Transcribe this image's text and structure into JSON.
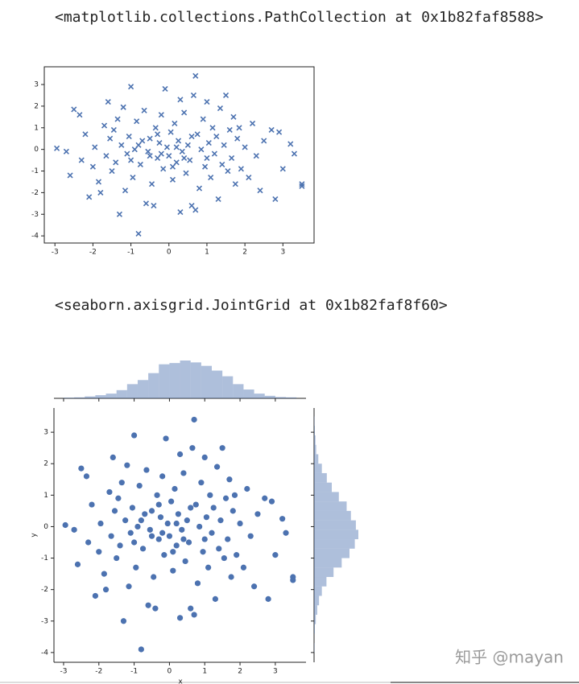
{
  "chart_data": [
    {
      "type": "scatter",
      "repr": "<matplotlib.collections.PathCollection at 0x1b82faf8588>",
      "marker": "x",
      "color": "#4c72b0",
      "x": [
        -2.95,
        -2.7,
        -2.6,
        -2.5,
        -2.35,
        -2.3,
        -2.2,
        -2.1,
        -2.0,
        -1.95,
        -1.85,
        -1.8,
        -1.7,
        -1.65,
        -1.6,
        -1.55,
        -1.5,
        -1.45,
        -1.4,
        -1.35,
        -1.3,
        -1.25,
        -1.2,
        -1.15,
        -1.1,
        -1.05,
        -1.0,
        -0.95,
        -0.9,
        -0.85,
        -0.8,
        -0.75,
        -0.7,
        -0.65,
        -0.6,
        -0.55,
        -0.5,
        -0.45,
        -0.4,
        -0.35,
        -0.3,
        -0.25,
        -0.2,
        -0.15,
        -0.1,
        -0.05,
        0.0,
        0.05,
        0.1,
        0.15,
        0.2,
        0.25,
        0.3,
        0.3,
        0.35,
        0.4,
        0.45,
        0.5,
        0.55,
        0.6,
        0.65,
        0.7,
        0.7,
        0.75,
        0.8,
        0.85,
        0.9,
        0.95,
        1.0,
        1.05,
        1.1,
        1.15,
        1.2,
        1.25,
        1.3,
        1.35,
        1.4,
        1.45,
        1.5,
        1.55,
        1.6,
        1.65,
        1.7,
        1.75,
        1.8,
        1.85,
        1.9,
        2.0,
        2.1,
        2.2,
        2.3,
        2.4,
        2.5,
        2.7,
        2.8,
        2.9,
        3.0,
        3.2,
        3.3,
        3.5,
        3.5,
        -0.5,
        0.2,
        -0.2,
        0.4,
        -0.8,
        0.6,
        -0.3,
        0.1,
        -1.0,
        1.0
      ],
      "y": [
        0.05,
        -0.1,
        -1.2,
        1.85,
        1.6,
        -0.5,
        0.7,
        -2.2,
        -0.8,
        0.1,
        -1.5,
        -2.0,
        1.1,
        -0.3,
        2.2,
        0.5,
        -1.0,
        0.9,
        -0.6,
        1.4,
        -3.0,
        0.2,
        1.95,
        -1.9,
        -0.2,
        0.6,
        2.9,
        -1.3,
        0.0,
        1.3,
        -3.9,
        -0.7,
        0.4,
        1.8,
        -2.5,
        -0.1,
        0.5,
        -1.6,
        -2.6,
        1.0,
        -0.4,
        0.3,
        1.6,
        -0.9,
        2.8,
        0.1,
        -0.3,
        0.8,
        -1.4,
        1.2,
        -0.6,
        0.4,
        -2.9,
        2.3,
        -0.1,
        1.7,
        -1.1,
        0.2,
        -0.5,
        -2.6,
        2.5,
        3.4,
        -2.8,
        0.7,
        -1.8,
        0.0,
        1.4,
        -0.8,
        2.2,
        0.3,
        -1.3,
        1.0,
        -0.2,
        0.6,
        -2.3,
        1.9,
        -0.7,
        0.2,
        2.5,
        -1.0,
        0.9,
        -0.4,
        1.5,
        -1.6,
        0.5,
        1.0,
        -0.9,
        0.1,
        -1.3,
        1.2,
        -0.3,
        -1.9,
        0.4,
        0.9,
        -2.3,
        0.8,
        -0.9,
        0.25,
        -0.2,
        -1.6,
        -1.7,
        -0.3,
        0.1,
        -0.2,
        -0.4,
        0.2,
        0.6,
        0.7,
        -0.8,
        -0.5,
        -0.4
      ],
      "xlim": [
        -3.28,
        3.82
      ],
      "ylim": [
        -4.33,
        3.82
      ],
      "xticks": [
        -3,
        -2,
        -1,
        0,
        1,
        2,
        3
      ],
      "yticks": [
        -4,
        -3,
        -2,
        -1,
        0,
        1,
        2,
        3
      ]
    },
    {
      "type": "joint",
      "repr": "<seaborn.axisgrid.JointGrid at 0x1b82faf8f60>",
      "marker": "o",
      "color": "#4c72b0",
      "xlabel": "x",
      "ylabel": "y",
      "x": [
        -2.95,
        -2.7,
        -2.6,
        -2.5,
        -2.35,
        -2.3,
        -2.2,
        -2.1,
        -2.0,
        -1.95,
        -1.85,
        -1.8,
        -1.7,
        -1.65,
        -1.6,
        -1.55,
        -1.5,
        -1.45,
        -1.4,
        -1.35,
        -1.3,
        -1.25,
        -1.2,
        -1.15,
        -1.1,
        -1.05,
        -1.0,
        -0.95,
        -0.9,
        -0.85,
        -0.8,
        -0.75,
        -0.7,
        -0.65,
        -0.6,
        -0.55,
        -0.5,
        -0.45,
        -0.4,
        -0.35,
        -0.3,
        -0.25,
        -0.2,
        -0.15,
        -0.1,
        -0.05,
        0.0,
        0.05,
        0.1,
        0.15,
        0.2,
        0.25,
        0.3,
        0.3,
        0.35,
        0.4,
        0.45,
        0.5,
        0.55,
        0.6,
        0.65,
        0.7,
        0.7,
        0.75,
        0.8,
        0.85,
        0.9,
        0.95,
        1.0,
        1.05,
        1.1,
        1.15,
        1.2,
        1.25,
        1.3,
        1.35,
        1.4,
        1.45,
        1.5,
        1.55,
        1.6,
        1.65,
        1.7,
        1.75,
        1.8,
        1.85,
        1.9,
        2.0,
        2.1,
        2.2,
        2.3,
        2.4,
        2.5,
        2.7,
        2.8,
        2.9,
        3.0,
        3.2,
        3.3,
        3.5,
        3.5,
        -0.5,
        0.2,
        -0.2,
        0.4,
        -0.8,
        0.6,
        -0.3,
        0.1,
        -1.0,
        1.0
      ],
      "y": [
        0.05,
        -0.1,
        -1.2,
        1.85,
        1.6,
        -0.5,
        0.7,
        -2.2,
        -0.8,
        0.1,
        -1.5,
        -2.0,
        1.1,
        -0.3,
        2.2,
        0.5,
        -1.0,
        0.9,
        -0.6,
        1.4,
        -3.0,
        0.2,
        1.95,
        -1.9,
        -0.2,
        0.6,
        2.9,
        -1.3,
        0.0,
        1.3,
        -3.9,
        -0.7,
        0.4,
        1.8,
        -2.5,
        -0.1,
        0.5,
        -1.6,
        -2.6,
        1.0,
        -0.4,
        0.3,
        1.6,
        -0.9,
        2.8,
        0.1,
        -0.3,
        0.8,
        -1.4,
        1.2,
        -0.6,
        0.4,
        -2.9,
        2.3,
        -0.1,
        1.7,
        -1.1,
        0.2,
        -0.5,
        -2.6,
        2.5,
        3.4,
        -2.8,
        0.7,
        -1.8,
        0.0,
        1.4,
        -0.8,
        2.2,
        0.3,
        -1.3,
        1.0,
        -0.2,
        0.6,
        -2.3,
        1.9,
        -0.7,
        0.2,
        2.5,
        -1.0,
        0.9,
        -0.4,
        1.5,
        -1.6,
        0.5,
        1.0,
        -0.9,
        0.1,
        -1.3,
        1.2,
        -0.3,
        -1.9,
        0.4,
        0.9,
        -2.3,
        0.8,
        -0.9,
        0.25,
        -0.2,
        -1.6,
        -1.7,
        -0.3,
        0.1,
        -0.2,
        -0.4,
        0.2,
        0.6,
        0.7,
        -0.8,
        -0.5,
        -0.4
      ],
      "xlim": [
        -3.25,
        3.87
      ],
      "ylim": [
        -4.31,
        3.77
      ],
      "xticks": [
        -3,
        -2,
        -1,
        0,
        1,
        2,
        3
      ],
      "yticks": [
        -4,
        -3,
        -2,
        -1,
        0,
        1,
        2,
        3
      ],
      "x_hist": {
        "bins": [
          -3.0,
          -2.7,
          -2.4,
          -2.1,
          -1.8,
          -1.5,
          -1.2,
          -0.9,
          -0.6,
          -0.3,
          0.0,
          0.3,
          0.6,
          0.9,
          1.2,
          1.5,
          1.8,
          2.1,
          2.4,
          2.7,
          3.0,
          3.3,
          3.6
        ],
        "counts": [
          2,
          3,
          6,
          10,
          15,
          26,
          45,
          58,
          80,
          108,
          112,
          120,
          114,
          103,
          88,
          70,
          45,
          28,
          15,
          8,
          4,
          3
        ]
      },
      "y_hist": {
        "bins": [
          -4.0,
          -3.7,
          -3.4,
          -3.1,
          -2.8,
          -2.5,
          -2.2,
          -1.9,
          -1.6,
          -1.3,
          -1.0,
          -0.7,
          -0.4,
          -0.1,
          0.2,
          0.5,
          0.8,
          1.1,
          1.4,
          1.7,
          2.0,
          2.3,
          2.6,
          2.9,
          3.2,
          3.5
        ],
        "counts": [
          1,
          0,
          2,
          5,
          9,
          14,
          22,
          35,
          55,
          78,
          100,
          115,
          125,
          118,
          104,
          92,
          70,
          50,
          36,
          22,
          12,
          6,
          4,
          2,
          1
        ]
      }
    }
  ],
  "watermark": "知乎 @mayan"
}
